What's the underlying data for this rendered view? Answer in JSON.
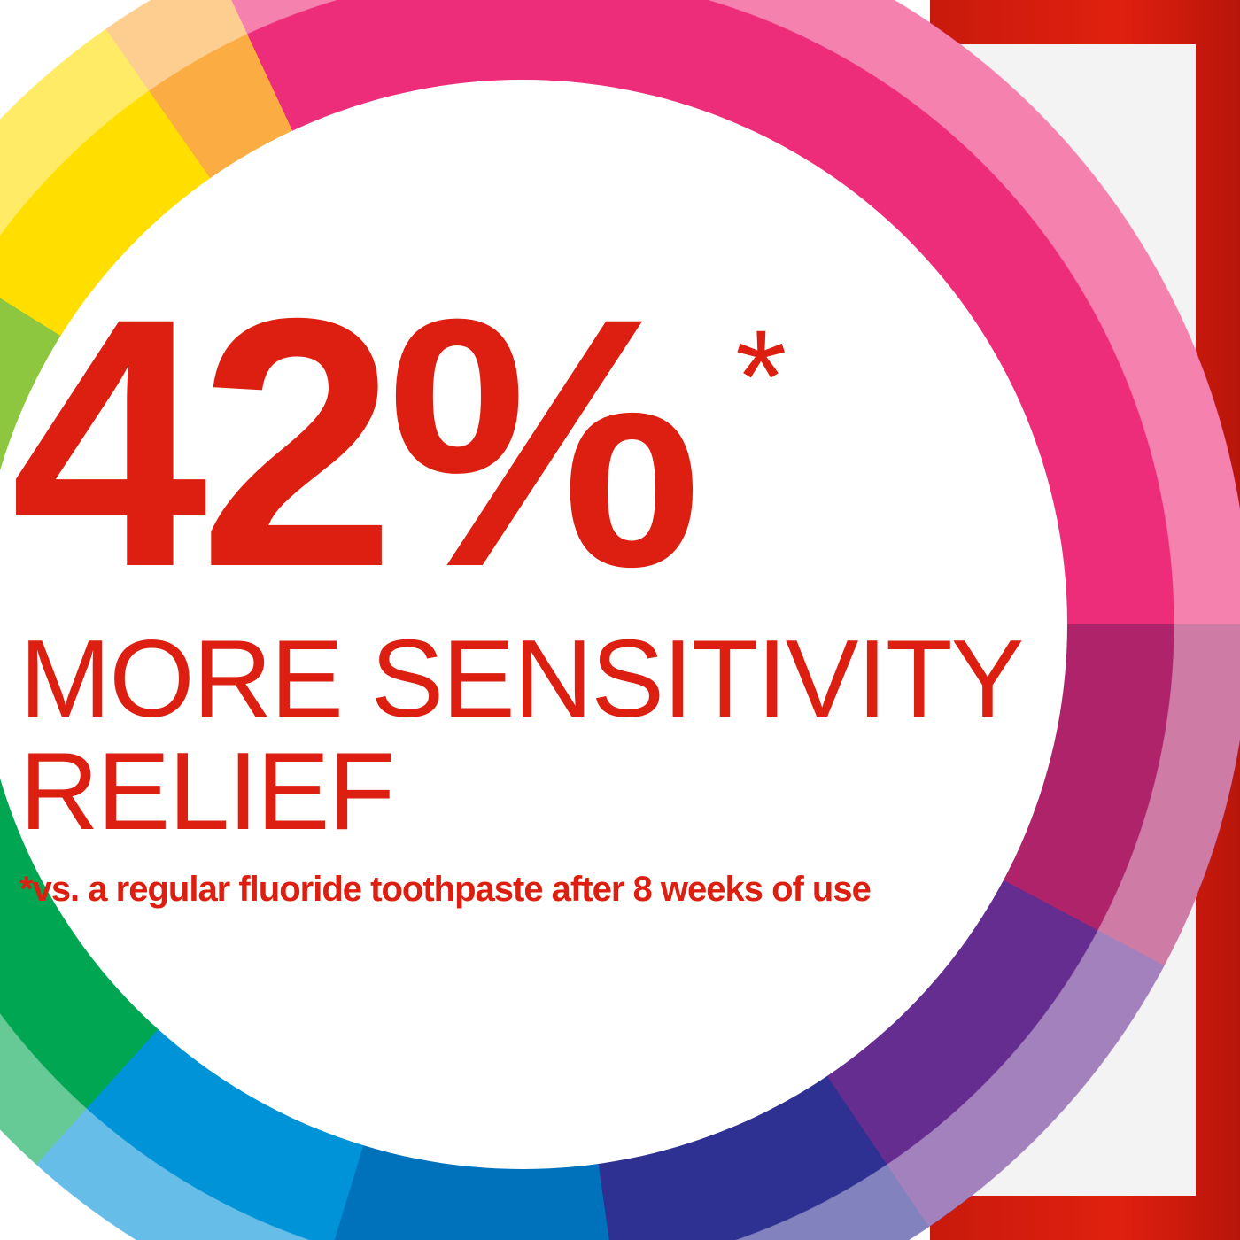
{
  "ad": {
    "stat": "42%",
    "asterisk": "*",
    "line1": "MORE SENSITIVITY",
    "line2": "RELIEF",
    "footnote": "*vs. a regular fluoride toothpaste after 8 weeks of use"
  },
  "colors": {
    "text": "#dc1f10",
    "frame": "#e0200f",
    "wheel": [
      "#ee2d7a",
      "#ae2369",
      "#662d91",
      "#2e3192",
      "#0072bc",
      "#0093d8",
      "#00a651",
      "#8dc63f",
      "#ffde00",
      "#fbad44",
      "#f7941d",
      "#f05a3c",
      "#ed2224"
    ]
  }
}
